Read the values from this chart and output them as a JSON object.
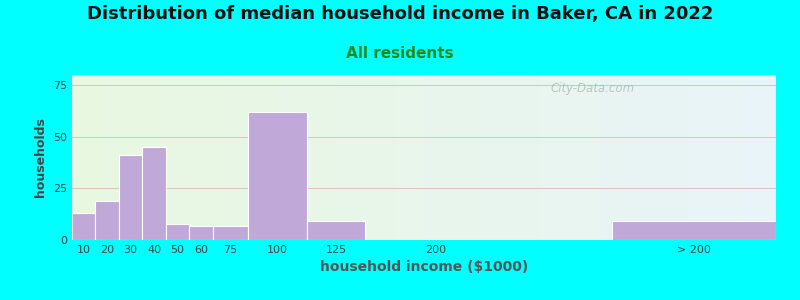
{
  "title": "Distribution of median household income in Baker, CA in 2022",
  "subtitle": "All residents",
  "xlabel": "household income ($1000)",
  "ylabel": "households",
  "background_outer": "#00FFFF",
  "background_inner_left": "#e8f8e0",
  "background_inner_right": "#e8f4f8",
  "bar_color": "#c0a8d8",
  "bar_edgecolor": "#ffffff",
  "yticks": [
    0,
    25,
    50,
    75
  ],
  "ylim": [
    0,
    80
  ],
  "categories": [
    "10",
    "20",
    "30",
    "40",
    "50",
    "60",
    "75",
    "100",
    "125",
    "200",
    "> 200"
  ],
  "values": [
    13,
    19,
    41,
    45,
    8,
    7,
    7,
    62,
    9,
    0,
    9
  ],
  "bar_lefts": [
    0,
    10,
    20,
    30,
    40,
    50,
    60,
    75,
    100,
    150,
    230
  ],
  "bar_widths": [
    10,
    10,
    10,
    10,
    10,
    10,
    15,
    25,
    25,
    5,
    70
  ],
  "xtick_positions": [
    5,
    15,
    25,
    35,
    45,
    55,
    67.5,
    87.5,
    112.5,
    155,
    265
  ],
  "xtick_labels": [
    "10",
    "20",
    "30",
    "40",
    "50",
    "60",
    "75",
    "100",
    "125",
    "200",
    "> 200"
  ],
  "xlim": [
    0,
    300
  ],
  "watermark": "City-Data.com",
  "title_fontsize": 13,
  "subtitle_fontsize": 11,
  "subtitle_color": "#228822",
  "ylabel_fontsize": 9,
  "xlabel_fontsize": 10,
  "tick_fontsize": 8,
  "grid_color": "#ddaaaa",
  "grid_alpha": 0.7
}
